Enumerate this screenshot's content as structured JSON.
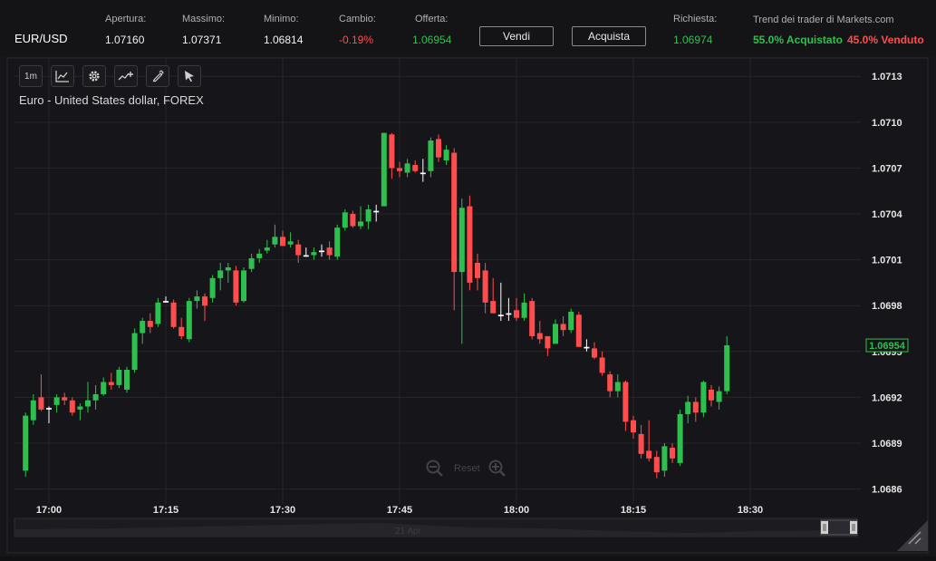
{
  "header": {
    "pair": "EUR/USD",
    "open_label": "Apertura:",
    "open_value": "1.07160",
    "high_label": "Massimo:",
    "high_value": "1.07371",
    "low_label": "Minimo:",
    "low_value": "1.06814",
    "change_label": "Cambio:",
    "change_value": "-0.19%",
    "bid_label": "Offerta:",
    "bid_value": "1.06954",
    "sell_label": "Vendi",
    "buy_label": "Acquista",
    "ask_label": "Richiesta:",
    "ask_value": "1.06974",
    "trend_label": "Trend dei trader di Markets.com",
    "trend_buy": "55.0% Acquistato",
    "trend_sell": "45.0% Venduto"
  },
  "toolbar": {
    "interval_label": "1m",
    "items": [
      {
        "icon": "line-chart-icon"
      },
      {
        "icon": "gear-icon"
      },
      {
        "icon": "indicator-icon"
      },
      {
        "icon": "pencil-icon"
      },
      {
        "icon": "cursor-icon"
      }
    ]
  },
  "chart_title": "Euro - United States dollar, FOREX",
  "reset_label": "Reset",
  "navigator_label": "21 Apr",
  "colors": {
    "up": "#2ec04f",
    "down": "#ff4d4d",
    "grid": "#26262b",
    "bg": "#16161a"
  },
  "chart_data": {
    "type": "candlestick",
    "y_ticks": [
      "1.0713",
      "1.0710",
      "1.0707",
      "1.0704",
      "1.0701",
      "1.0698",
      "1.0695",
      "1.0692",
      "1.0689",
      "1.0686"
    ],
    "y_tick_values": [
      1.0713,
      1.071,
      1.0707,
      1.0704,
      1.0701,
      1.0698,
      1.0695,
      1.0692,
      1.0689,
      1.0686
    ],
    "ylim": [
      1.06855,
      1.07142
    ],
    "x_ticks": [
      "17:00",
      "17:15",
      "17:30",
      "17:45",
      "18:00",
      "18:15",
      "18:30"
    ],
    "x_tick_minutes": [
      0,
      15,
      30,
      45,
      60,
      75,
      90
    ],
    "last_price": "1.06954",
    "last_price_value": 1.06954,
    "candles_start_minute": -3,
    "candles": [
      [
        1.06872,
        1.0691,
        1.06868,
        1.06908
      ],
      [
        1.06905,
        1.06922,
        1.06902,
        1.06918
      ],
      [
        1.0692,
        1.06935,
        1.06911,
        1.06912
      ],
      [
        1.06912,
        1.06914,
        1.06903,
        1.06913
      ],
      [
        1.06915,
        1.06922,
        1.0691,
        1.0692
      ],
      [
        1.0692,
        1.06923,
        1.06915,
        1.06918
      ],
      [
        1.06918,
        1.0692,
        1.06908,
        1.0691
      ],
      [
        1.06912,
        1.06916,
        1.06905,
        1.06914
      ],
      [
        1.06914,
        1.0693,
        1.0691,
        1.06918
      ],
      [
        1.06918,
        1.06928,
        1.06912,
        1.06922
      ],
      [
        1.06922,
        1.06933,
        1.06921,
        1.0693
      ],
      [
        1.0693,
        1.06936,
        1.06925,
        1.06928
      ],
      [
        1.06928,
        1.0694,
        1.06926,
        1.06938
      ],
      [
        1.06925,
        1.0694,
        1.06923,
        1.06938
      ],
      [
        1.06938,
        1.06965,
        1.06936,
        1.06962
      ],
      [
        1.06962,
        1.06972,
        1.06955,
        1.0697
      ],
      [
        1.0697,
        1.06975,
        1.06962,
        1.06966
      ],
      [
        1.06968,
        1.06985,
        1.06966,
        1.06982
      ],
      [
        1.06982,
        1.06986,
        1.06982,
        1.06983
      ],
      [
        1.06982,
        1.06984,
        1.06965,
        1.06966
      ],
      [
        1.06966,
        1.06972,
        1.06958,
        1.0696
      ],
      [
        1.06958,
        1.06985,
        1.06956,
        1.06983
      ],
      [
        1.06983,
        1.0699,
        1.06978,
        1.06986
      ],
      [
        1.06986,
        1.06988,
        1.0697,
        1.0698
      ],
      [
        1.06985,
        1.07,
        1.06982,
        1.06998
      ],
      [
        1.06998,
        1.07008,
        1.0699,
        1.07003
      ],
      [
        1.07003,
        1.07008,
        1.06995,
        1.07005
      ],
      [
        1.07003,
        1.07006,
        1.0698,
        1.06982
      ],
      [
        1.06983,
        1.07005,
        1.06982,
        1.07003
      ],
      [
        1.07004,
        1.07014,
        1.07002,
        1.07011
      ],
      [
        1.07011,
        1.07017,
        1.07008,
        1.07014
      ],
      [
        1.07016,
        1.07023,
        1.07014,
        1.07018
      ],
      [
        1.0702,
        1.07033,
        1.07018,
        1.07025
      ],
      [
        1.07025,
        1.07029,
        1.07019,
        1.07019
      ],
      [
        1.0702,
        1.07028,
        1.07018,
        1.07022
      ],
      [
        1.0702,
        1.07023,
        1.07008,
        1.07013
      ],
      [
        1.07012,
        1.07018,
        1.07012,
        1.07013
      ],
      [
        1.07013,
        1.07018,
        1.0701,
        1.07015
      ],
      [
        1.07015,
        1.0702,
        1.07012,
        1.07016
      ],
      [
        1.07018,
        1.07022,
        1.0701,
        1.07013
      ],
      [
        1.07012,
        1.07033,
        1.0701,
        1.07031
      ],
      [
        1.07031,
        1.07043,
        1.07029,
        1.07041
      ],
      [
        1.0704,
        1.07042,
        1.07031,
        1.07032
      ],
      [
        1.07032,
        1.07045,
        1.0703,
        1.07035
      ],
      [
        1.07035,
        1.07046,
        1.0703,
        1.07043
      ],
      [
        1.07041,
        1.07046,
        1.07035,
        1.07042
      ],
      [
        1.07045,
        1.07093,
        1.07045,
        1.07093
      ],
      [
        1.07092,
        1.07093,
        1.07063,
        1.0707
      ],
      [
        1.0707,
        1.07074,
        1.07064,
        1.07068
      ],
      [
        1.07067,
        1.07076,
        1.07064,
        1.07073
      ],
      [
        1.07072,
        1.07075,
        1.07067,
        1.07068
      ],
      [
        1.07066,
        1.07076,
        1.07061,
        1.07067
      ],
      [
        1.07068,
        1.0709,
        1.07064,
        1.07088
      ],
      [
        1.07089,
        1.07092,
        1.07074,
        1.07077
      ],
      [
        1.07075,
        1.07085,
        1.07072,
        1.07082
      ],
      [
        1.0708,
        1.07083,
        1.06977,
        1.07002
      ],
      [
        1.07002,
        1.0705,
        1.06955,
        1.07044
      ],
      [
        1.07045,
        1.07052,
        1.0699,
        1.06995
      ],
      [
        1.07008,
        1.07014,
        1.0699,
        1.06998
      ],
      [
        1.07003,
        1.07008,
        1.06975,
        1.06982
      ],
      [
        1.06983,
        1.06998,
        1.06975,
        1.06975
      ],
      [
        1.06973,
        1.06995,
        1.0697,
        1.06974
      ],
      [
        1.06974,
        1.06985,
        1.0697,
        1.06975
      ],
      [
        1.06977,
        1.06985,
        1.0697,
        1.06972
      ],
      [
        1.06972,
        1.06988,
        1.0697,
        1.06982
      ],
      [
        1.06983,
        1.06985,
        1.06958,
        1.0696
      ],
      [
        1.06962,
        1.0697,
        1.06955,
        1.06958
      ],
      [
        1.0696,
        1.0696,
        1.06947,
        1.06952
      ],
      [
        1.06955,
        1.06971,
        1.06955,
        1.06968
      ],
      [
        1.06968,
        1.06973,
        1.0696,
        1.06964
      ],
      [
        1.06964,
        1.06978,
        1.06962,
        1.06976
      ],
      [
        1.06974,
        1.06976,
        1.06953,
        1.06953
      ],
      [
        1.06953,
        1.06958,
        1.0695,
        1.06952
      ],
      [
        1.06952,
        1.06956,
        1.06945,
        1.06946
      ],
      [
        1.06946,
        1.0695,
        1.06934,
        1.06936
      ],
      [
        1.06935,
        1.06937,
        1.0692,
        1.06924
      ],
      [
        1.06924,
        1.06935,
        1.0692,
        1.0693
      ],
      [
        1.0693,
        1.06931,
        1.06898,
        1.06904
      ],
      [
        1.06905,
        1.06908,
        1.06893,
        1.06897
      ],
      [
        1.06896,
        1.06902,
        1.0688,
        1.06883
      ],
      [
        1.06885,
        1.06905,
        1.06878,
        1.0688
      ],
      [
        1.06881,
        1.06885,
        1.06867,
        1.06871
      ],
      [
        1.06872,
        1.0689,
        1.06868,
        1.06888
      ],
      [
        1.06887,
        1.0689,
        1.06877,
        1.0688
      ],
      [
        1.06877,
        1.06912,
        1.06875,
        1.06909
      ],
      [
        1.06909,
        1.06921,
        1.06903,
        1.06917
      ],
      [
        1.06917,
        1.0692,
        1.06904,
        1.0691
      ],
      [
        1.0691,
        1.06931,
        1.06907,
        1.0693
      ],
      [
        1.06925,
        1.06928,
        1.06914,
        1.06918
      ],
      [
        1.06917,
        1.06927,
        1.06912,
        1.06924
      ],
      [
        1.06924,
        1.0696,
        1.06922,
        1.06954
      ]
    ]
  }
}
